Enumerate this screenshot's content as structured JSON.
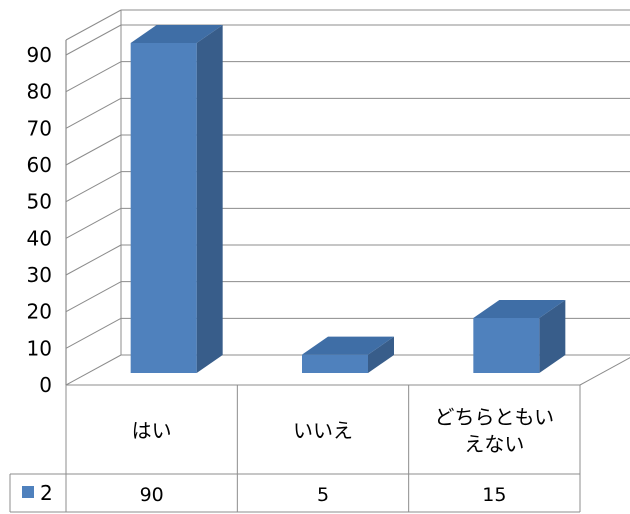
{
  "chart_data": {
    "type": "bar",
    "categories": [
      "はい",
      "いいえ",
      "どちらともいえない"
    ],
    "category_lines": [
      [
        "はい"
      ],
      [
        "いいえ"
      ],
      [
        "どちらともい",
        "えない"
      ]
    ],
    "series": [
      {
        "name": "2",
        "values": [
          90,
          5,
          15
        ]
      }
    ],
    "y_ticks": [
      "0",
      "10",
      "20",
      "30",
      "40",
      "50",
      "60",
      "70",
      "80",
      "90"
    ],
    "ylim": [
      0,
      90
    ],
    "grid": true,
    "three_d": true,
    "legend": "data-table",
    "colors": {
      "bar_front": "#4f81bd",
      "bar_side": "#385d8a",
      "bar_top": "#3f6ea6",
      "grid": "#8c8c8c"
    }
  }
}
